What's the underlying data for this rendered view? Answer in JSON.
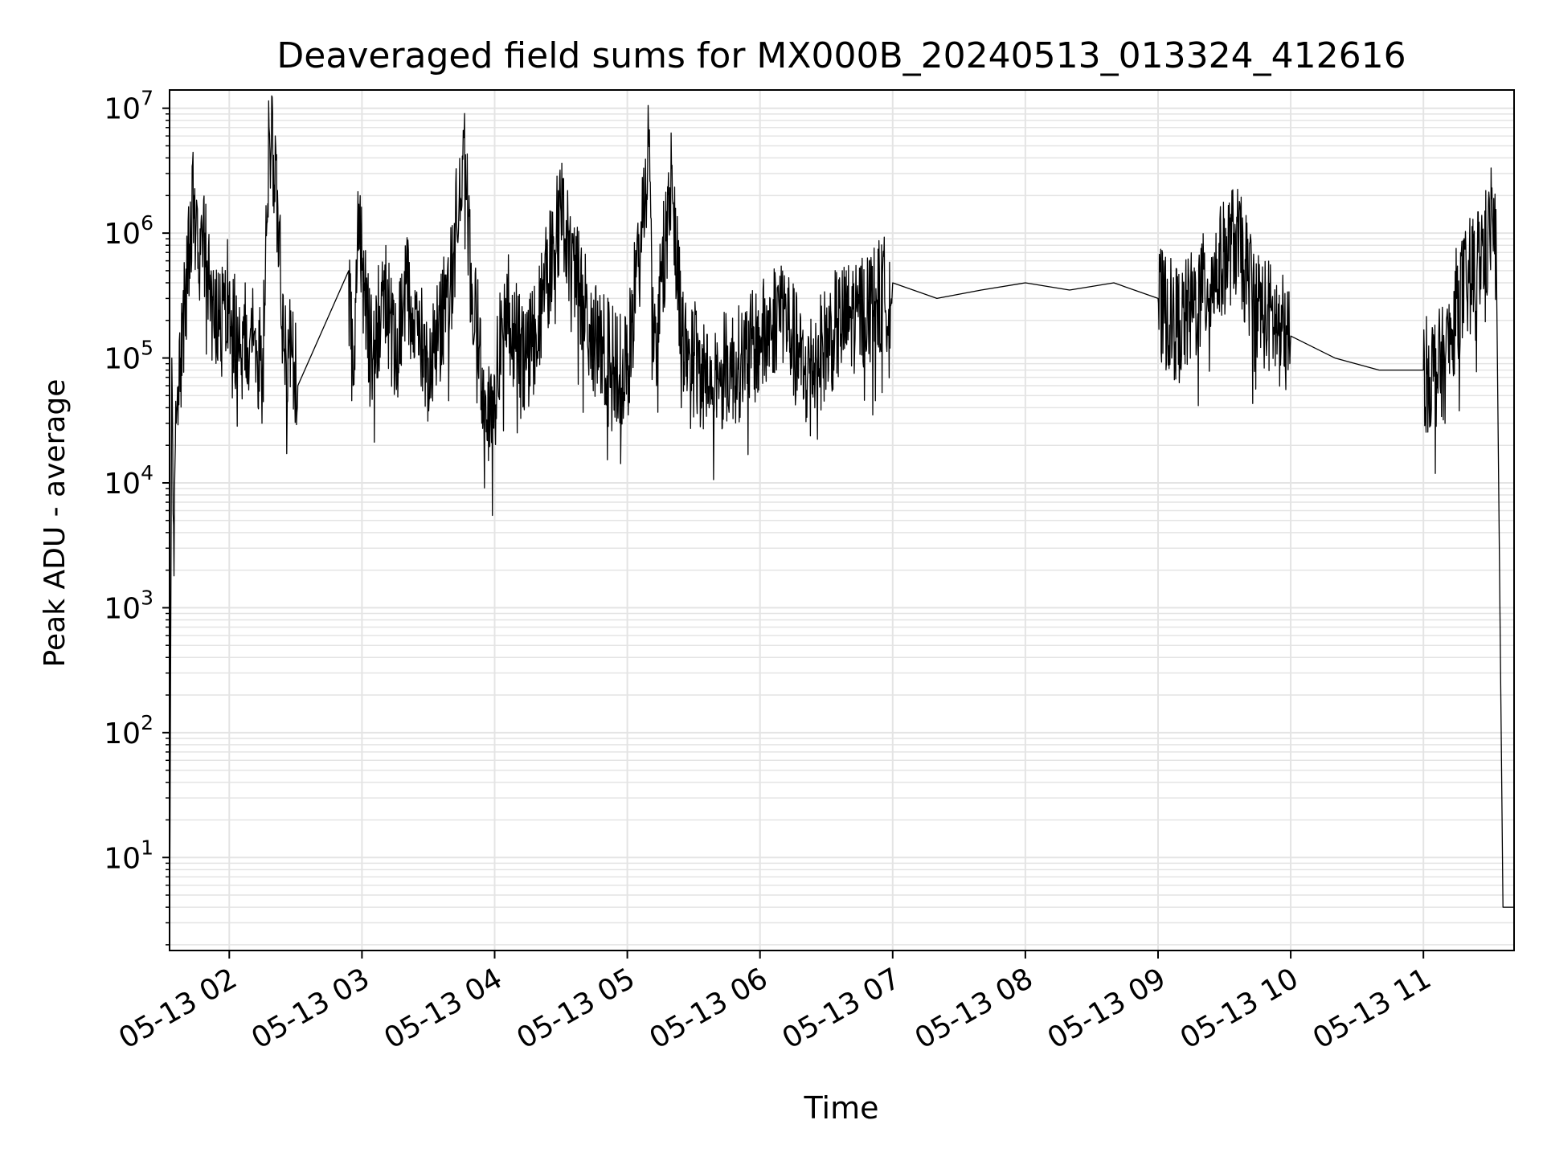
{
  "chart_data": {
    "type": "line",
    "title": "Deaveraged field sums for MX000B_20240513_013324_412616",
    "xlabel": "Time",
    "ylabel": "Peak ADU - average",
    "yscale": "log",
    "ylim": [
      1.8,
      14000000
    ],
    "xlim": [
      "05-13 01:33",
      "05-13 11:41"
    ],
    "grid": true,
    "line_color": "#000000",
    "grid_color": "#e4e4e4",
    "x_ticks": [
      "05-13 02",
      "05-13 03",
      "05-13 04",
      "05-13 05",
      "05-13 06",
      "05-13 07",
      "05-13 08",
      "05-13 09",
      "05-13 10",
      "05-13 11"
    ],
    "y_ticks": [
      {
        "base": "10",
        "exp": "1",
        "value": 10
      },
      {
        "base": "10",
        "exp": "2",
        "value": 100
      },
      {
        "base": "10",
        "exp": "3",
        "value": 1000
      },
      {
        "base": "10",
        "exp": "4",
        "value": 10000
      },
      {
        "base": "10",
        "exp": "5",
        "value": 100000
      },
      {
        "base": "10",
        "exp": "6",
        "value": 1000000
      },
      {
        "base": "10",
        "exp": "7",
        "value": 10000000
      }
    ],
    "series": [
      {
        "points": [
          [
            "05-13 01:33",
            2
          ],
          [
            "05-13 01:34",
            100000
          ],
          [
            "05-13 01:35",
            1800
          ],
          [
            "05-13 01:36",
            30000
          ],
          [
            "05-13 01:38",
            100000
          ],
          [
            "05-13 01:41",
            500000
          ],
          [
            "05-13 01:44",
            2000000
          ],
          [
            "05-13 01:46",
            700000
          ],
          [
            "05-13 01:49",
            1000000
          ],
          [
            "05-13 01:52",
            400000
          ],
          [
            "05-13 01:56",
            200000
          ],
          [
            "05-13 02:00",
            400000
          ],
          [
            "05-13 02:05",
            100000
          ],
          [
            "05-13 02:10",
            250000
          ],
          [
            "05-13 02:15",
            80000
          ],
          [
            "05-13 02:18",
            7000000
          ],
          [
            "05-13 02:20",
            4200000
          ],
          [
            "05-13 02:22",
            1600000
          ],
          [
            "05-13 02:25",
            100000
          ],
          [
            "05-13 02:28",
            150000
          ],
          [
            "05-13 02:31",
            60000
          ],
          [
            "05-13 02:54",
            500000
          ],
          [
            "05-13 02:56",
            60000
          ],
          [
            "05-13 02:58",
            1200000
          ],
          [
            "05-13 03:02",
            300000
          ],
          [
            "05-13 03:05",
            100000
          ],
          [
            "05-13 03:10",
            500000
          ],
          [
            "05-13 03:15",
            100000
          ],
          [
            "05-13 03:20",
            400000
          ],
          [
            "05-13 03:30",
            100000
          ],
          [
            "05-13 03:40",
            400000
          ],
          [
            "05-13 03:46",
            5800000
          ],
          [
            "05-13 03:50",
            300000
          ],
          [
            "05-13 03:55",
            80000
          ],
          [
            "05-13 03:58",
            30000
          ],
          [
            "05-13 04:05",
            300000
          ],
          [
            "05-13 04:15",
            100000
          ],
          [
            "05-13 04:30",
            1500000
          ],
          [
            "05-13 04:45",
            150000
          ],
          [
            "05-13 05:00",
            80000
          ],
          [
            "05-13 05:10",
            6700000
          ],
          [
            "05-13 05:12",
            100000
          ],
          [
            "05-13 05:20",
            3300000
          ],
          [
            "05-13 05:25",
            150000
          ],
          [
            "05-13 05:35",
            80000
          ],
          [
            "05-13 05:50",
            100000
          ],
          [
            "05-13 06:00",
            150000
          ],
          [
            "05-13 06:10",
            300000
          ],
          [
            "05-13 06:20",
            80000
          ],
          [
            "05-13 06:35",
            200000
          ],
          [
            "05-13 06:50",
            300000
          ],
          [
            "05-13 07:00",
            400000
          ],
          [
            "05-13 07:20",
            300000
          ],
          [
            "05-13 07:40",
            350000
          ],
          [
            "05-13 08:00",
            400000
          ],
          [
            "05-13 08:20",
            350000
          ],
          [
            "05-13 08:40",
            400000
          ],
          [
            "05-13 09:00",
            300000
          ],
          [
            "05-13 09:10",
            200000
          ],
          [
            "05-13 09:25",
            500000
          ],
          [
            "05-13 09:35",
            1000000
          ],
          [
            "05-13 09:45",
            300000
          ],
          [
            "05-13 10:00",
            150000
          ],
          [
            "05-13 10:20",
            100000
          ],
          [
            "05-13 10:40",
            80000
          ],
          [
            "05-13 11:00",
            80000
          ],
          [
            "05-13 11:10",
            100000
          ],
          [
            "05-13 11:15",
            300000
          ],
          [
            "05-13 11:25",
            700000
          ],
          [
            "05-13 11:30",
            1000000
          ],
          [
            "05-13 11:31",
            2300000
          ],
          [
            "05-13 11:33",
            600000
          ],
          [
            "05-13 11:36",
            4
          ],
          [
            "05-13 11:41",
            4
          ]
        ]
      }
    ]
  }
}
